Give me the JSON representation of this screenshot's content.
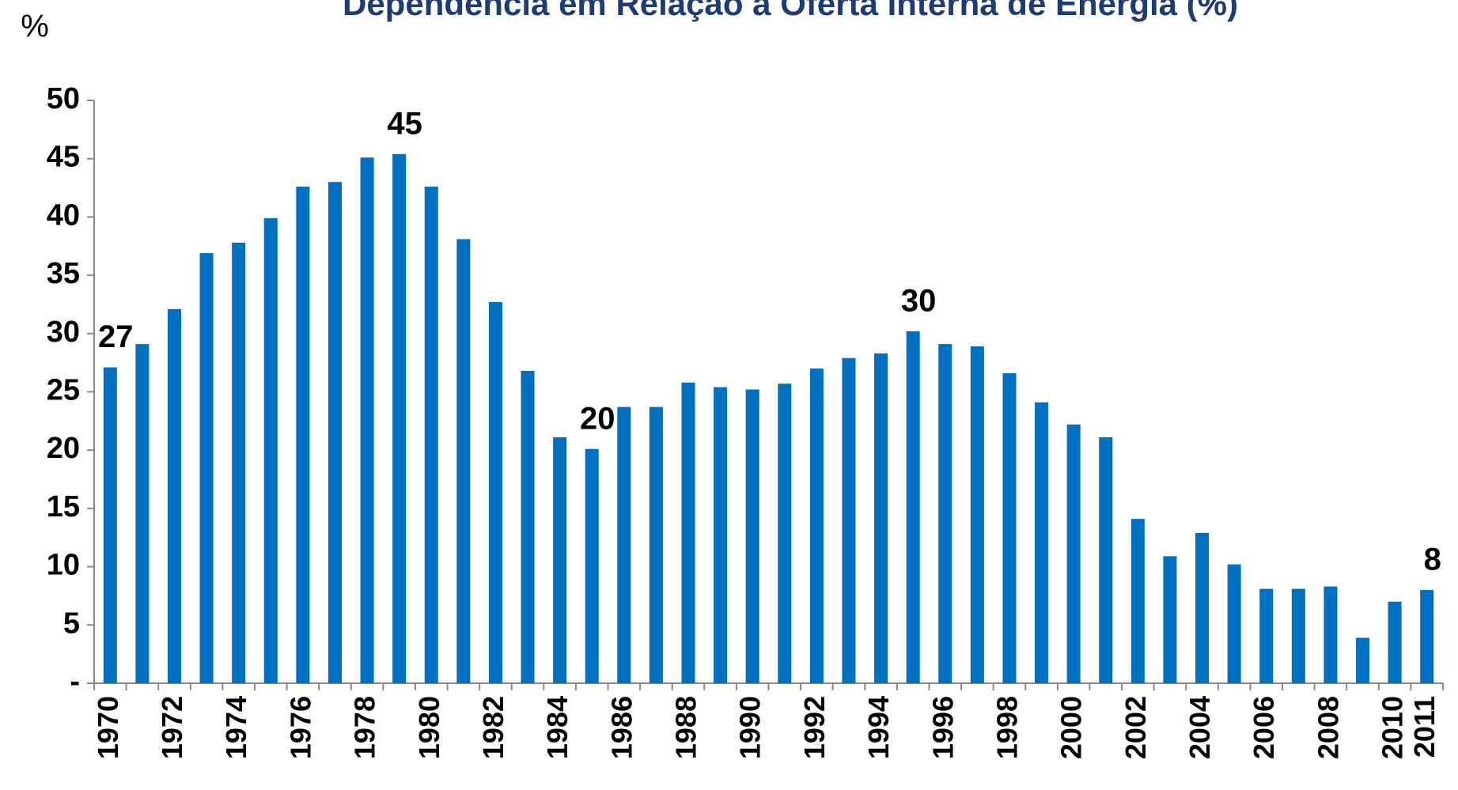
{
  "chart_data": {
    "type": "bar",
    "title": "Dependência em Relação à Oferta Interna de Energia (%)",
    "y_label": "%",
    "categories": [
      "1970",
      null,
      "1972",
      null,
      "1974",
      null,
      "1976",
      null,
      "1978",
      null,
      "1980",
      null,
      "1982",
      null,
      "1984",
      null,
      "1986",
      null,
      "1988",
      null,
      "1990",
      null,
      "1992",
      null,
      "1994",
      null,
      "1996",
      null,
      "1998",
      null,
      "2000",
      null,
      "2002",
      null,
      "2004",
      null,
      "2006",
      null,
      "2008",
      null,
      "2010",
      "2011"
    ],
    "values": [
      27.1,
      29.1,
      32.1,
      36.9,
      37.8,
      39.9,
      42.6,
      43.0,
      45.1,
      45.4,
      42.6,
      38.1,
      32.7,
      26.8,
      21.1,
      20.1,
      23.7,
      23.7,
      25.8,
      25.4,
      25.2,
      25.7,
      27.0,
      27.9,
      28.3,
      30.2,
      29.1,
      28.9,
      26.6,
      24.1,
      22.2,
      21.1,
      14.1,
      10.9,
      12.9,
      10.2,
      8.1,
      8.1,
      8.3,
      3.9,
      7.0,
      8.0
    ],
    "value_labels": [
      "27",
      null,
      null,
      null,
      null,
      null,
      null,
      null,
      null,
      "45",
      null,
      null,
      null,
      null,
      null,
      "20",
      null,
      null,
      null,
      null,
      null,
      null,
      null,
      null,
      null,
      "30",
      null,
      null,
      null,
      null,
      null,
      null,
      null,
      null,
      null,
      null,
      null,
      null,
      null,
      null,
      null,
      "8"
    ],
    "color": "#0070c0",
    "ylim": [
      0,
      50
    ],
    "yticks": [
      {
        "value": 0,
        "label": "-"
      },
      5,
      10,
      15,
      20,
      25,
      30,
      35,
      40,
      45,
      50
    ],
    "grid": false
  }
}
